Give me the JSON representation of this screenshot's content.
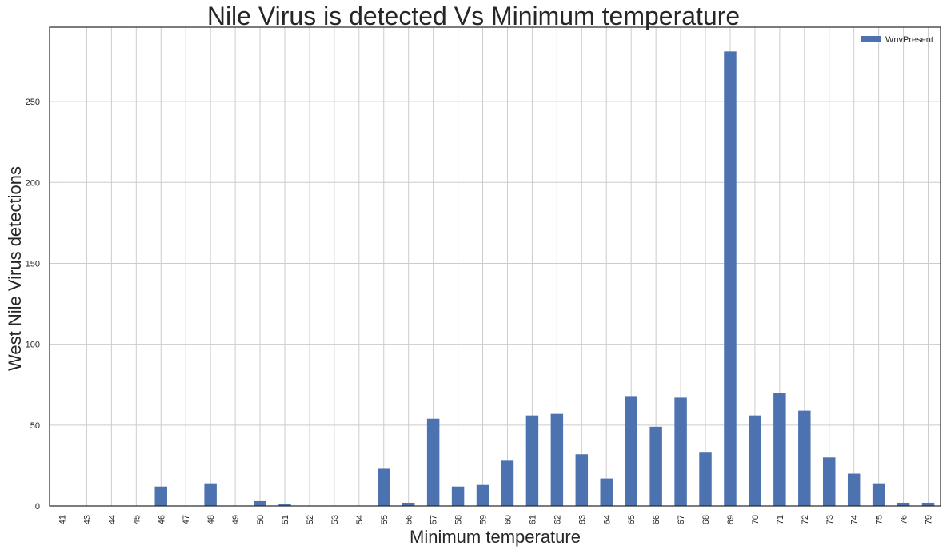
{
  "chart_data": {
    "type": "bar",
    "title": "Nile Virus is detected Vs Minimum temperature",
    "xlabel": "Minimum temperature",
    "ylabel": "West Nile Virus detections",
    "categories": [
      "41",
      "43",
      "44",
      "45",
      "46",
      "47",
      "48",
      "49",
      "50",
      "51",
      "52",
      "53",
      "54",
      "55",
      "56",
      "57",
      "58",
      "59",
      "60",
      "61",
      "62",
      "63",
      "64",
      "65",
      "66",
      "67",
      "68",
      "69",
      "70",
      "71",
      "72",
      "73",
      "74",
      "75",
      "76",
      "79"
    ],
    "series": [
      {
        "name": "WnvPresent",
        "values": [
          0,
          0,
          0,
          0,
          12,
          0,
          14,
          0,
          3,
          1,
          0,
          0,
          0,
          23,
          2,
          54,
          12,
          13,
          28,
          56,
          57,
          32,
          17,
          68,
          49,
          67,
          33,
          281,
          56,
          70,
          59,
          30,
          20,
          14,
          2,
          2
        ]
      }
    ],
    "ylim": [
      0,
      296
    ],
    "yticks": [
      0,
      50,
      100,
      150,
      200,
      250
    ],
    "grid": true,
    "legend_position": "top-right",
    "bar_color": "#4c72b0"
  }
}
